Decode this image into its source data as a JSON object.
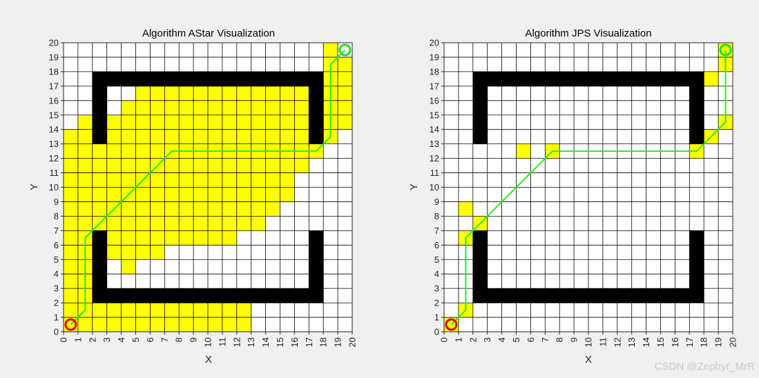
{
  "colors": {
    "background": "#f0f0f0",
    "free": "#ffffff",
    "explored": "#ffff00",
    "obstacle": "#000000",
    "grid": "#000000",
    "path": "#22ee22",
    "start_marker": "#e00000",
    "goal_marker": "#22dd22"
  },
  "watermark": "CSDN @Zephyr_MrR",
  "chart_data": [
    {
      "type": "heatmap",
      "title": "Algorithm AStar Visualization",
      "xlabel": "X",
      "ylabel": "Y",
      "xlim": [
        0,
        20
      ],
      "ylim": [
        0,
        20
      ],
      "xticks": [
        "0",
        "1",
        "2",
        "3",
        "4",
        "5",
        "6",
        "7",
        "8",
        "9",
        "10",
        "11",
        "12",
        "13",
        "14",
        "15",
        "16",
        "17",
        "18",
        "19",
        "20"
      ],
      "yticks": [
        "0",
        "1",
        "2",
        "3",
        "4",
        "5",
        "6",
        "7",
        "8",
        "9",
        "10",
        "11",
        "12",
        "13",
        "14",
        "15",
        "16",
        "17",
        "18",
        "19",
        "20"
      ],
      "grid": true,
      "obstacles": [
        [
          2,
          2
        ],
        [
          3,
          2
        ],
        [
          4,
          2
        ],
        [
          5,
          2
        ],
        [
          6,
          2
        ],
        [
          7,
          2
        ],
        [
          8,
          2
        ],
        [
          9,
          2
        ],
        [
          10,
          2
        ],
        [
          11,
          2
        ],
        [
          12,
          2
        ],
        [
          13,
          2
        ],
        [
          14,
          2
        ],
        [
          15,
          2
        ],
        [
          16,
          2
        ],
        [
          17,
          2
        ],
        [
          2,
          3
        ],
        [
          2,
          4
        ],
        [
          2,
          5
        ],
        [
          2,
          6
        ],
        [
          17,
          3
        ],
        [
          17,
          4
        ],
        [
          17,
          5
        ],
        [
          17,
          6
        ],
        [
          2,
          17
        ],
        [
          3,
          17
        ],
        [
          4,
          17
        ],
        [
          5,
          17
        ],
        [
          6,
          17
        ],
        [
          7,
          17
        ],
        [
          8,
          17
        ],
        [
          9,
          17
        ],
        [
          10,
          17
        ],
        [
          11,
          17
        ],
        [
          12,
          17
        ],
        [
          13,
          17
        ],
        [
          14,
          17
        ],
        [
          15,
          17
        ],
        [
          16,
          17
        ],
        [
          17,
          17
        ],
        [
          2,
          13
        ],
        [
          2,
          14
        ],
        [
          2,
          15
        ],
        [
          2,
          16
        ],
        [
          17,
          13
        ],
        [
          17,
          14
        ],
        [
          17,
          15
        ],
        [
          17,
          16
        ]
      ],
      "explored_rows": [
        {
          "y": 0,
          "x_ranges": [
            [
              0,
              12
            ]
          ]
        },
        {
          "y": 1,
          "x_ranges": [
            [
              0,
              12
            ]
          ]
        },
        {
          "y": 2,
          "x_ranges": [
            [
              0,
              1
            ]
          ]
        },
        {
          "y": 3,
          "x_ranges": [
            [
              0,
              1
            ]
          ]
        },
        {
          "y": 4,
          "x_ranges": [
            [
              0,
              1
            ],
            [
              4,
              4
            ]
          ]
        },
        {
          "y": 5,
          "x_ranges": [
            [
              0,
              1
            ],
            [
              3,
              6
            ]
          ]
        },
        {
          "y": 6,
          "x_ranges": [
            [
              0,
              1
            ],
            [
              3,
              11
            ]
          ]
        },
        {
          "y": 7,
          "x_ranges": [
            [
              0,
              13
            ]
          ]
        },
        {
          "y": 8,
          "x_ranges": [
            [
              0,
              14
            ]
          ]
        },
        {
          "y": 9,
          "x_ranges": [
            [
              0,
              15
            ]
          ]
        },
        {
          "y": 10,
          "x_ranges": [
            [
              0,
              15
            ]
          ]
        },
        {
          "y": 11,
          "x_ranges": [
            [
              0,
              16
            ]
          ]
        },
        {
          "y": 12,
          "x_ranges": [
            [
              0,
              17
            ]
          ]
        },
        {
          "y": 13,
          "x_ranges": [
            [
              0,
              1
            ],
            [
              3,
              18
            ]
          ]
        },
        {
          "y": 14,
          "x_ranges": [
            [
              1,
              1
            ],
            [
              3,
              16
            ],
            [
              18,
              19
            ]
          ]
        },
        {
          "y": 15,
          "x_ranges": [
            [
              4,
              16
            ],
            [
              18,
              19
            ]
          ]
        },
        {
          "y": 16,
          "x_ranges": [
            [
              5,
              16
            ],
            [
              18,
              19
            ]
          ]
        },
        {
          "y": 17,
          "x_ranges": [
            [
              18,
              19
            ]
          ]
        },
        {
          "y": 18,
          "x_ranges": [
            [
              18,
              19
            ]
          ]
        },
        {
          "y": 19,
          "x_ranges": [
            [
              18,
              18
            ]
          ]
        }
      ],
      "path": [
        [
          0.5,
          0.5
        ],
        [
          1.5,
          1.5
        ],
        [
          1.5,
          6.5
        ],
        [
          7.5,
          12.5
        ],
        [
          17.5,
          12.5
        ],
        [
          18.5,
          13.5
        ],
        [
          18.5,
          18.5
        ],
        [
          19.5,
          19.5
        ]
      ],
      "start": [
        0.5,
        0.5
      ],
      "goal": [
        19.5,
        19.5
      ]
    },
    {
      "type": "heatmap",
      "title": "Algorithm JPS Visualization",
      "xlabel": "X",
      "ylabel": "Y",
      "xlim": [
        0,
        20
      ],
      "ylim": [
        0,
        20
      ],
      "xticks": [
        "0",
        "1",
        "2",
        "3",
        "4",
        "5",
        "6",
        "7",
        "8",
        "9",
        "10",
        "11",
        "12",
        "13",
        "14",
        "15",
        "16",
        "17",
        "18",
        "19",
        "20"
      ],
      "yticks": [
        "0",
        "1",
        "2",
        "3",
        "4",
        "5",
        "6",
        "7",
        "8",
        "9",
        "10",
        "11",
        "12",
        "13",
        "14",
        "15",
        "16",
        "17",
        "18",
        "19",
        "20"
      ],
      "grid": true,
      "obstacles": [
        [
          2,
          2
        ],
        [
          3,
          2
        ],
        [
          4,
          2
        ],
        [
          5,
          2
        ],
        [
          6,
          2
        ],
        [
          7,
          2
        ],
        [
          8,
          2
        ],
        [
          9,
          2
        ],
        [
          10,
          2
        ],
        [
          11,
          2
        ],
        [
          12,
          2
        ],
        [
          13,
          2
        ],
        [
          14,
          2
        ],
        [
          15,
          2
        ],
        [
          16,
          2
        ],
        [
          17,
          2
        ],
        [
          2,
          3
        ],
        [
          2,
          4
        ],
        [
          2,
          5
        ],
        [
          2,
          6
        ],
        [
          17,
          3
        ],
        [
          17,
          4
        ],
        [
          17,
          5
        ],
        [
          17,
          6
        ],
        [
          2,
          17
        ],
        [
          3,
          17
        ],
        [
          4,
          17
        ],
        [
          5,
          17
        ],
        [
          6,
          17
        ],
        [
          7,
          17
        ],
        [
          8,
          17
        ],
        [
          9,
          17
        ],
        [
          10,
          17
        ],
        [
          11,
          17
        ],
        [
          12,
          17
        ],
        [
          13,
          17
        ],
        [
          14,
          17
        ],
        [
          15,
          17
        ],
        [
          16,
          17
        ],
        [
          17,
          17
        ],
        [
          2,
          13
        ],
        [
          2,
          14
        ],
        [
          2,
          15
        ],
        [
          2,
          16
        ],
        [
          17,
          13
        ],
        [
          17,
          14
        ],
        [
          17,
          15
        ],
        [
          17,
          16
        ]
      ],
      "explored_cells": [
        [
          0,
          0
        ],
        [
          1,
          1
        ],
        [
          1,
          6
        ],
        [
          1,
          8
        ],
        [
          2,
          7
        ],
        [
          5,
          12
        ],
        [
          7,
          12
        ],
        [
          17,
          12
        ],
        [
          18,
          13
        ],
        [
          19,
          14
        ],
        [
          18,
          17
        ],
        [
          19,
          18
        ],
        [
          19,
          19
        ]
      ],
      "path": [
        [
          0.5,
          0.5
        ],
        [
          1.5,
          1.5
        ],
        [
          1.5,
          6.5
        ],
        [
          7.5,
          12.5
        ],
        [
          17.5,
          12.5
        ],
        [
          19.5,
          14.5
        ],
        [
          19.5,
          19.5
        ]
      ],
      "start": [
        0.5,
        0.5
      ],
      "goal": [
        19.5,
        19.5
      ]
    }
  ]
}
